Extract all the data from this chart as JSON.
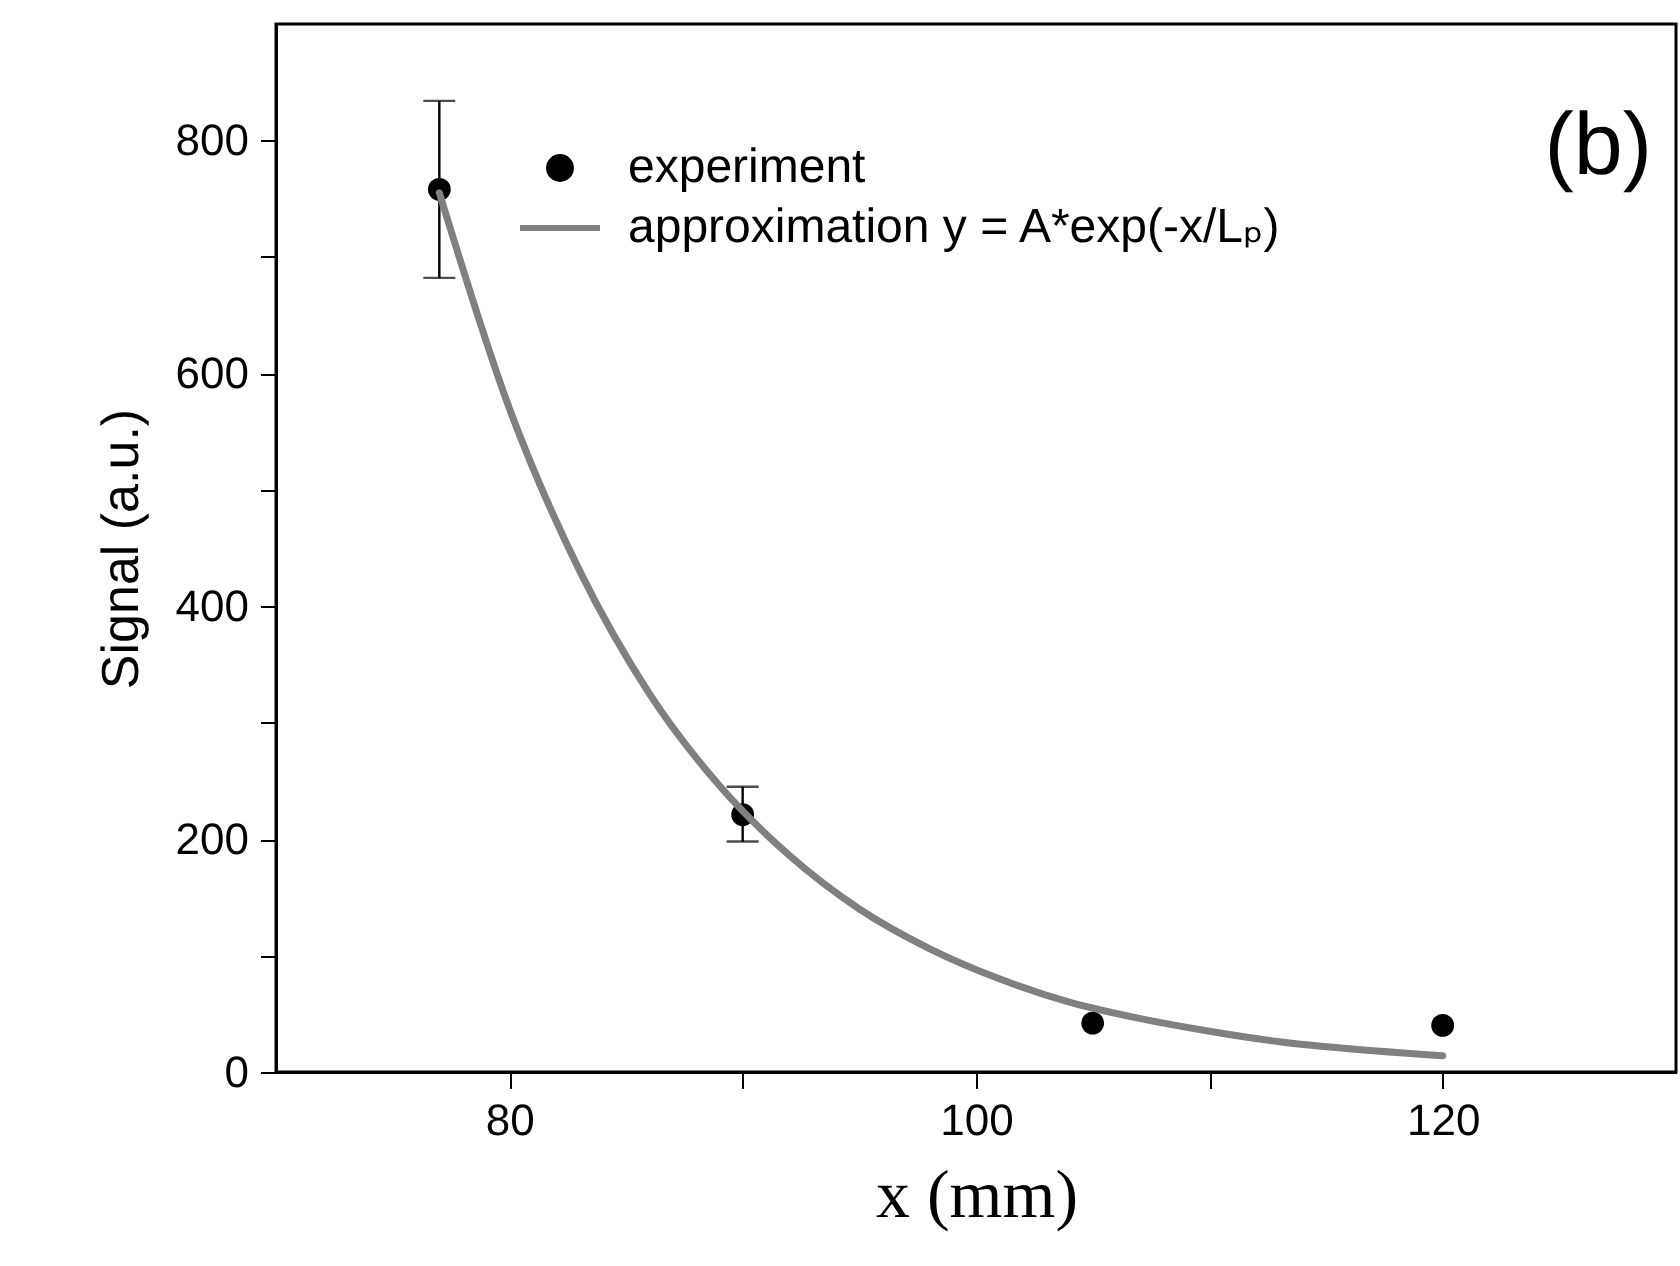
{
  "chart_data": {
    "type": "scatter",
    "xlabel": "x (mm)",
    "ylabel": "Signal (a.u.)",
    "annotations": [
      "(b)"
    ],
    "xlim": [
      70,
      130
    ],
    "xticks": [
      80,
      {
        "value": 90,
        "label": null
      },
      100,
      {
        "value": 110,
        "label": null
      },
      120
    ],
    "ylim": [
      0,
      900
    ],
    "yticks": [
      0,
      {
        "value": 100,
        "label": null
      },
      200,
      {
        "value": 300,
        "label": null
      },
      400,
      {
        "value": 500,
        "label": null
      },
      600,
      {
        "value": 700,
        "label": null
      },
      800
    ],
    "grid": false,
    "legend": "top",
    "series": [
      {
        "name": "experiment",
        "marker": "circle",
        "color": "#000000",
        "x": [
          77,
          90,
          105,
          120
        ],
        "values": [
          758,
          221,
          42,
          40
        ],
        "errors": [
          [
            682,
            834
          ],
          [
            198,
            245
          ],
          null,
          null
        ]
      },
      {
        "name": "approximation  y = A*exp(-x/Lₚ)",
        "type": "line",
        "color": "#808080",
        "line_style": "solid",
        "x": [
          77,
          80,
          83,
          86,
          89,
          92,
          95,
          98,
          101,
          104,
          107,
          110,
          113,
          116,
          120
        ],
        "values": [
          755,
          570,
          431,
          325,
          246,
          186,
          140,
          106,
          80,
          60,
          46,
          35,
          26,
          20,
          14
        ]
      }
    ]
  }
}
